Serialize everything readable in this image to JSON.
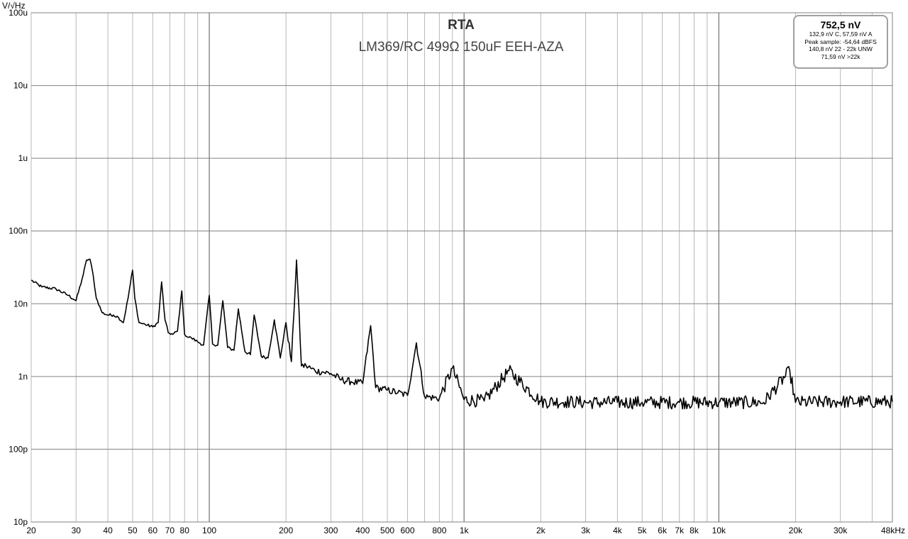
{
  "chart_data": {
    "type": "line",
    "title": "RTA",
    "subtitle": "LM369/RC 499Ω 150uF EEH-AZA",
    "ylabel": "V/√Hz",
    "xlabel": "",
    "x_scale": "log",
    "y_scale": "log",
    "xlim": [
      20,
      48000
    ],
    "ylim": [
      1e-11,
      0.0001
    ],
    "grid": true,
    "x_tick_labels": [
      {
        "value": 20,
        "label": "20"
      },
      {
        "value": 30,
        "label": "30"
      },
      {
        "value": 40,
        "label": "40"
      },
      {
        "value": 50,
        "label": "50"
      },
      {
        "value": 60,
        "label": "60"
      },
      {
        "value": 70,
        "label": "70"
      },
      {
        "value": 80,
        "label": "80"
      },
      {
        "value": 100,
        "label": "100"
      },
      {
        "value": 200,
        "label": "200"
      },
      {
        "value": 300,
        "label": "300"
      },
      {
        "value": 400,
        "label": "400"
      },
      {
        "value": 500,
        "label": "500"
      },
      {
        "value": 600,
        "label": "600"
      },
      {
        "value": 800,
        "label": "800"
      },
      {
        "value": 1000,
        "label": "1k"
      },
      {
        "value": 2000,
        "label": "2k"
      },
      {
        "value": 3000,
        "label": "3k"
      },
      {
        "value": 4000,
        "label": "4k"
      },
      {
        "value": 5000,
        "label": "5k"
      },
      {
        "value": 6000,
        "label": "6k"
      },
      {
        "value": 7000,
        "label": "7k"
      },
      {
        "value": 8000,
        "label": "8k"
      },
      {
        "value": 10000,
        "label": "10k"
      },
      {
        "value": 20000,
        "label": "20k"
      },
      {
        "value": 30000,
        "label": "30k"
      },
      {
        "value": 48000,
        "label": "48kHz"
      }
    ],
    "y_tick_labels": [
      {
        "value": 0.0001,
        "label": "100u"
      },
      {
        "value": 1e-05,
        "label": "10u"
      },
      {
        "value": 1e-06,
        "label": "1u"
      },
      {
        "value": 1e-07,
        "label": "100n"
      },
      {
        "value": 1e-08,
        "label": "10n"
      },
      {
        "value": 1e-09,
        "label": "1n"
      },
      {
        "value": 1e-10,
        "label": "100p"
      },
      {
        "value": 1e-11,
        "label": "10p"
      }
    ],
    "series": [
      {
        "color": "#000000",
        "x": [
          20,
          22,
          25,
          28,
          30,
          32,
          33,
          34,
          35,
          36,
          38,
          40,
          42,
          44,
          46,
          48,
          50,
          51,
          53,
          56,
          60,
          63,
          65,
          67,
          69,
          72,
          75,
          78,
          80,
          82,
          85,
          90,
          95,
          100,
          103,
          108,
          113,
          118,
          125,
          130,
          138,
          145,
          150,
          160,
          170,
          180,
          190,
          200,
          210,
          220,
          230,
          240,
          250,
          260,
          280,
          300,
          330,
          360,
          400,
          430,
          450,
          500,
          550,
          600,
          650,
          700,
          800,
          900,
          1000,
          1200,
          1500,
          2000,
          2500,
          3000,
          4000,
          5000,
          7000,
          10000,
          15000,
          19000,
          20000,
          30000,
          48000
        ],
        "y": [
          2.1e-08,
          1.7e-08,
          1.6e-08,
          1.3e-08,
          1.1e-08,
          2.5e-08,
          4e-08,
          4.1e-08,
          2.5e-08,
          1.2e-08,
          7.5e-09,
          7e-09,
          7e-09,
          6.5e-09,
          5.5e-09,
          1.2e-08,
          2.9e-08,
          1.2e-08,
          5.5e-09,
          5.2e-09,
          4.8e-09,
          5.5e-09,
          2e-08,
          6e-09,
          4e-09,
          3.8e-09,
          4.2e-09,
          1.5e-08,
          3.8e-09,
          3.5e-09,
          3.4e-09,
          3e-09,
          2.7e-09,
          1.3e-08,
          2.8e-09,
          2.7e-09,
          1.1e-08,
          2.5e-09,
          2.3e-09,
          8.5e-09,
          2.2e-09,
          2e-09,
          7e-09,
          1.9e-09,
          1.8e-09,
          6e-09,
          1.8e-09,
          5.5e-09,
          1.6e-09,
          4e-08,
          1.4e-09,
          1.4e-09,
          1.3e-09,
          1.2e-09,
          1.15e-09,
          1.1e-09,
          9e-10,
          8.5e-10,
          8e-10,
          5e-09,
          7e-10,
          6.5e-10,
          6e-10,
          5.5e-10,
          2.9e-09,
          5.3e-10,
          5e-10,
          1.3e-09,
          4.8e-10,
          4.6e-10,
          1.2e-09,
          4.5e-10,
          4.5e-10,
          4.4e-10,
          4.4e-10,
          4.4e-10,
          4.4e-10,
          4.4e-10,
          4.4e-10,
          1.2e-09,
          4.4e-10,
          4.5e-10,
          4.5e-10
        ]
      }
    ]
  },
  "info_box": {
    "main": "752,5 nV",
    "lines": [
      "132,9 nV C, 57,59 nV A",
      "Peak sample: -54,64 dBFS",
      "140,8 nV 22 - 22k UNW",
      "71,59 nV >22k"
    ]
  }
}
